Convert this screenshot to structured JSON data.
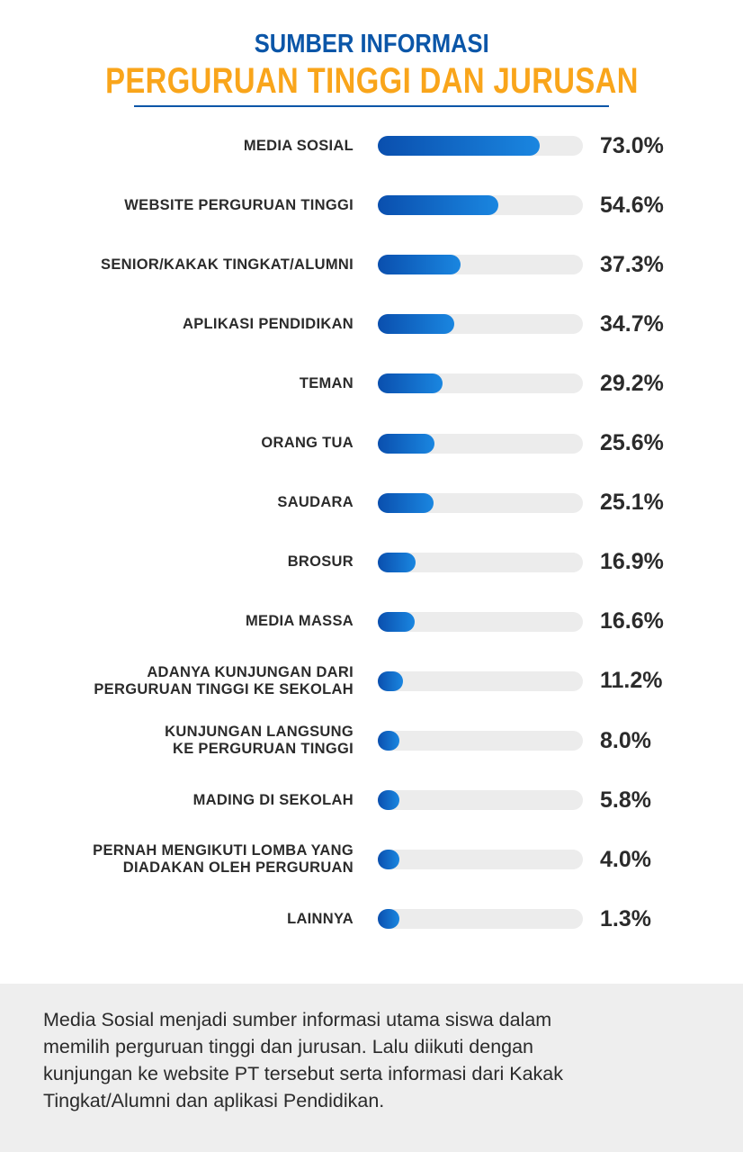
{
  "title": {
    "line1": "SUMBER INFORMASI",
    "line2": "PERGURUAN TINGGI DAN JURUSAN"
  },
  "colors": {
    "title_blue": "#0b56a8",
    "title_orange": "#f9a51b",
    "bar_start": "#0a4fae",
    "bar_end": "#1a86e0",
    "track": "#ececec"
  },
  "chart_data": {
    "type": "bar",
    "orientation": "horizontal",
    "title": "SUMBER INFORMASI PERGURUAN TINGGI DAN JURUSAN",
    "xlabel": "",
    "ylabel": "",
    "xlim": [
      0,
      100
    ],
    "unit": "%",
    "categories": [
      "MEDIA SOSIAL",
      "WEBSITE PERGURUAN TINGGI",
      "SENIOR/KAKAK TINGKAT/ALUMNI",
      "APLIKASI PENDIDIKAN",
      "TEMAN",
      "ORANG TUA",
      "SAUDARA",
      "BROSUR",
      "MEDIA MASSA",
      "ADANYA KUNJUNGAN DARI\nPERGURUAN TINGGI KE SEKOLAH",
      "KUNJUNGAN LANGSUNG\nKE PERGURUAN TINGGI",
      "MADING DI SEKOLAH",
      "PERNAH MENGIKUTI LOMBA YANG\nDIADAKAN OLEH PERGURUAN",
      "LAINNYA"
    ],
    "values": [
      73.0,
      54.6,
      37.3,
      34.7,
      29.2,
      25.6,
      25.1,
      16.9,
      16.6,
      11.2,
      8.0,
      5.8,
      4.0,
      1.3
    ],
    "value_labels": [
      "73.0%",
      "54.6%",
      "37.3%",
      "34.7%",
      "29.2%",
      "25.6%",
      "25.1%",
      "16.9%",
      "16.6%",
      "11.2%",
      "8.0%",
      "5.8%",
      "4.0%",
      "1.3%"
    ]
  },
  "summary": {
    "lines": [
      "Media Sosial menjadi sumber informasi utama siswa dalam",
      "memilih perguruan tinggi dan jurusan. Lalu diikuti dengan",
      "kunjungan ke website PT tersebut serta informasi dari Kakak",
      "Tingkat/Alumni dan aplikasi Pendidikan."
    ]
  }
}
